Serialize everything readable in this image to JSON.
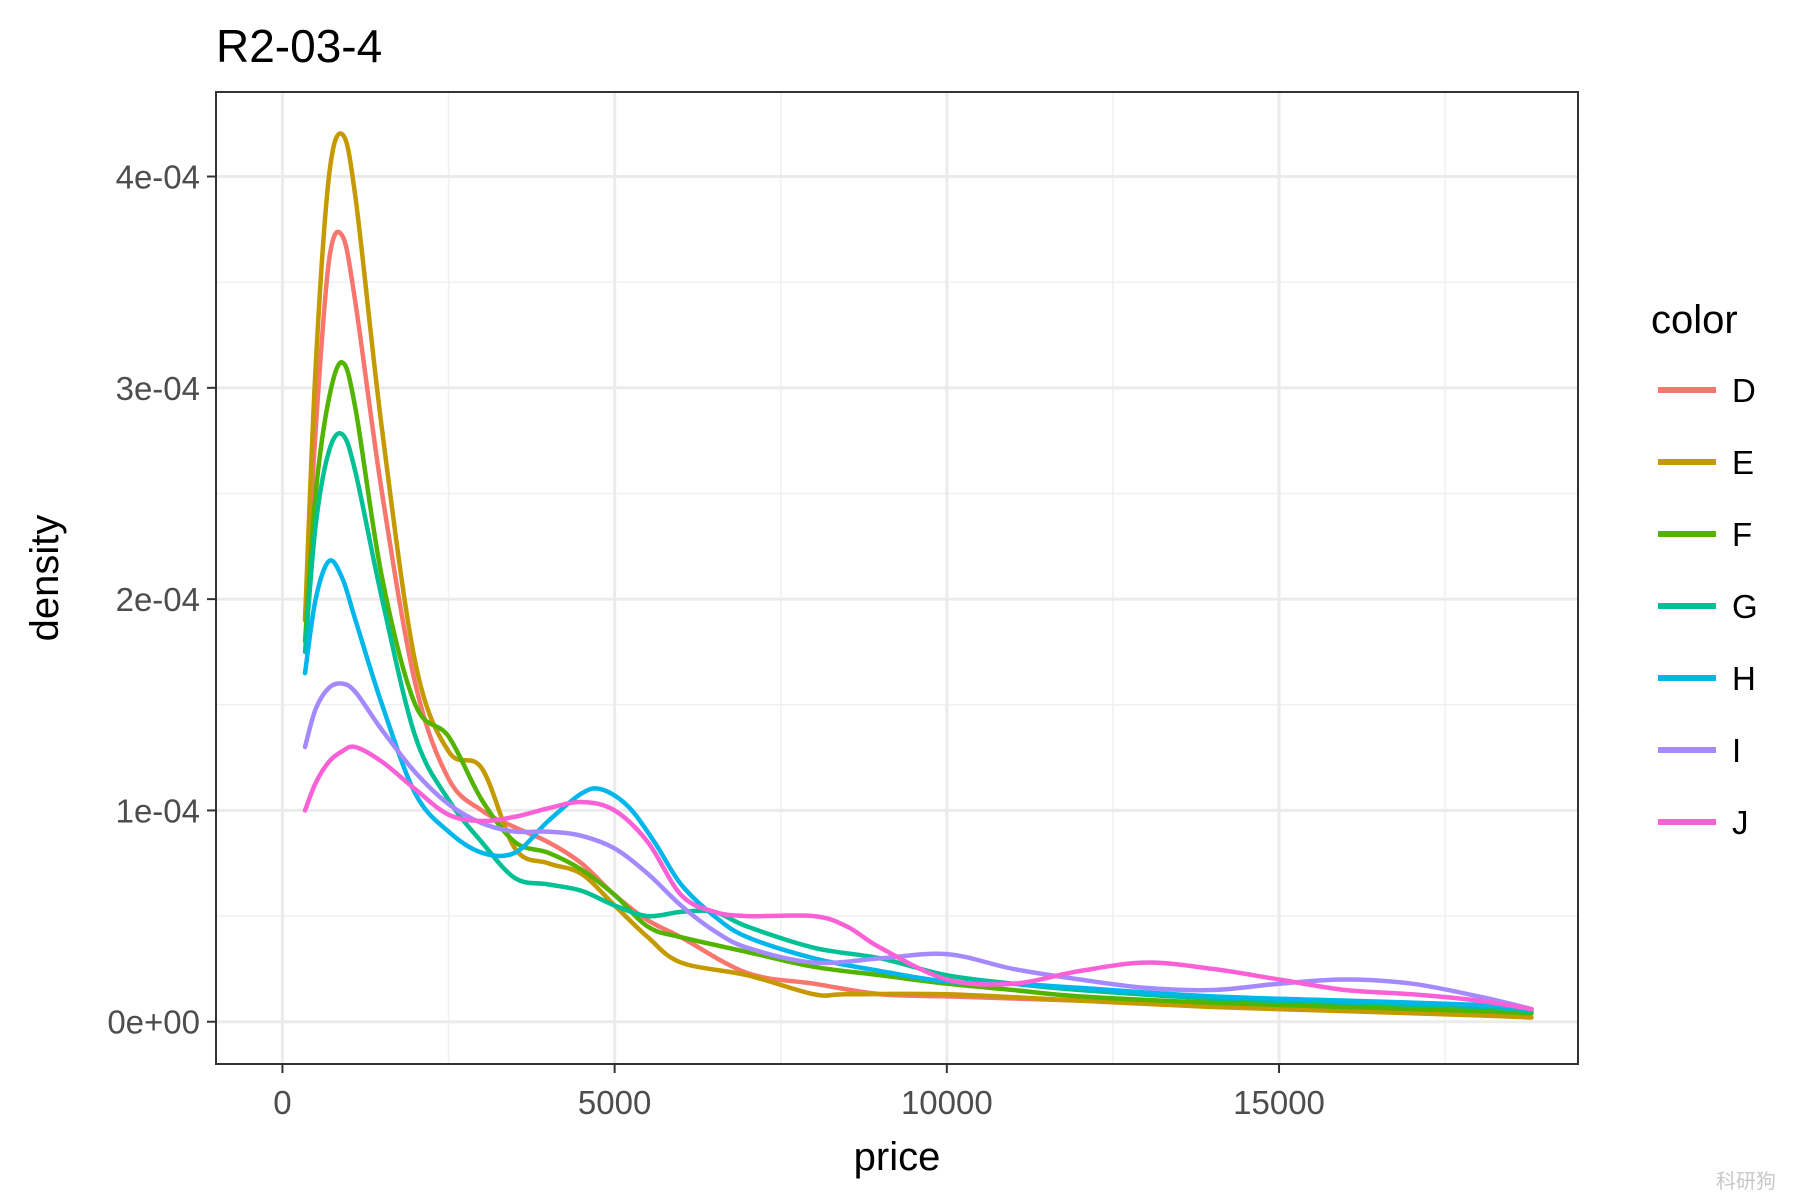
{
  "chart_data": {
    "type": "line",
    "title": "R2-03-4",
    "xlabel": "price",
    "ylabel": "density",
    "xlim": [
      -1000,
      19500
    ],
    "ylim": [
      -2e-05,
      0.00044
    ],
    "x_ticks": [
      0,
      5000,
      10000,
      15000
    ],
    "x_tick_labels": [
      "0",
      "5000",
      "10000",
      "15000"
    ],
    "y_ticks": [
      0,
      0.0001,
      0.0002,
      0.0003,
      0.0004
    ],
    "y_tick_labels": [
      "0e+00",
      "1e-04",
      "2e-04",
      "3e-04",
      "4e-04"
    ],
    "grid": true,
    "legend": {
      "title": "color",
      "position": "right"
    },
    "watermark": "科研狗",
    "series": [
      {
        "name": "D",
        "color": "#F8766D",
        "x": [
          340,
          500,
          700,
          900,
          1100,
          1500,
          2000,
          2500,
          3000,
          3500,
          4000,
          4500,
          5000,
          5500,
          6000,
          7000,
          8000,
          9000,
          10000,
          11000,
          12000,
          14000,
          16000,
          18000,
          18800
        ],
        "y": [
          0.00019,
          0.00028,
          0.00036,
          0.000372,
          0.00034,
          0.00025,
          0.00016,
          0.000115,
          0.0001,
          9.2e-05,
          8.5e-05,
          7.5e-05,
          6e-05,
          4.8e-05,
          4e-05,
          2.3e-05,
          1.8e-05,
          1.3e-05,
          1.2e-05,
          1.1e-05,
          1e-05,
          8e-06,
          7e-06,
          5e-06,
          4e-06
        ]
      },
      {
        "name": "E",
        "color": "#C49A00",
        "x": [
          340,
          500,
          700,
          900,
          1100,
          1500,
          2000,
          2500,
          3000,
          3500,
          4000,
          4500,
          5000,
          5500,
          6000,
          7000,
          8000,
          8500,
          10000,
          12000,
          14000,
          16000,
          18000,
          18800
        ],
        "y": [
          0.00019,
          0.00031,
          0.0004,
          0.00042,
          0.00039,
          0.00028,
          0.00017,
          0.000128,
          0.00012,
          8.2e-05,
          7.5e-05,
          7e-05,
          5.5e-05,
          4e-05,
          2.8e-05,
          2.2e-05,
          1.3e-05,
          1.3e-05,
          1.3e-05,
          1e-05,
          7e-06,
          5e-06,
          3e-06,
          2e-06
        ]
      },
      {
        "name": "F",
        "color": "#53B400",
        "x": [
          340,
          500,
          700,
          900,
          1100,
          1500,
          2000,
          2500,
          3000,
          3500,
          4000,
          4500,
          5000,
          5500,
          6000,
          7000,
          8000,
          9000,
          10000,
          11000,
          12000,
          14000,
          16000,
          18000,
          18800
        ],
        "y": [
          0.00018,
          0.00025,
          0.000295,
          0.000312,
          0.00029,
          0.00021,
          0.00015,
          0.000135,
          0.000105,
          8.5e-05,
          8e-05,
          7.2e-05,
          6e-05,
          4.5e-05,
          4e-05,
          3.3e-05,
          2.6e-05,
          2.2e-05,
          1.8e-05,
          1.5e-05,
          1.2e-05,
          9e-06,
          7e-06,
          5e-06,
          4e-06
        ]
      },
      {
        "name": "G",
        "color": "#00C094",
        "x": [
          340,
          500,
          700,
          900,
          1100,
          1500,
          2000,
          2500,
          3000,
          3500,
          4000,
          4500,
          5000,
          5500,
          6000,
          6500,
          7000,
          8000,
          9000,
          10000,
          11000,
          12000,
          14000,
          16000,
          18000,
          18800
        ],
        "y": [
          0.000175,
          0.000235,
          0.00027,
          0.000278,
          0.00026,
          0.0002,
          0.000135,
          0.000105,
          8.5e-05,
          6.8e-05,
          6.5e-05,
          6.2e-05,
          5.5e-05,
          5e-05,
          5.2e-05,
          5.2e-05,
          4.5e-05,
          3.5e-05,
          3e-05,
          2.2e-05,
          1.8e-05,
          1.5e-05,
          1.1e-05,
          9e-06,
          7e-06,
          5e-06
        ]
      },
      {
        "name": "H",
        "color": "#00B6EB",
        "x": [
          340,
          500,
          700,
          900,
          1100,
          1500,
          2000,
          2500,
          3000,
          3500,
          4000,
          4500,
          4800,
          5200,
          5600,
          6000,
          6500,
          7000,
          8000,
          9000,
          10000,
          11000,
          12000,
          14000,
          16000,
          18000,
          18800
        ],
        "y": [
          0.000165,
          0.0002,
          0.000218,
          0.00021,
          0.00019,
          0.00015,
          0.000108,
          9e-05,
          8e-05,
          8e-05,
          9.5e-05,
          0.000108,
          0.00011,
          0.000102,
          8.5e-05,
          6.5e-05,
          5e-05,
          4e-05,
          3e-05,
          2.4e-05,
          1.9e-05,
          1.8e-05,
          1.6e-05,
          1.2e-05,
          1e-05,
          8e-06,
          6e-06
        ]
      },
      {
        "name": "I",
        "color": "#A58AFF",
        "x": [
          340,
          500,
          700,
          900,
          1100,
          1500,
          2000,
          2500,
          3000,
          3500,
          4000,
          4500,
          5000,
          5500,
          6000,
          6500,
          7000,
          8000,
          9000,
          10000,
          11000,
          12000,
          13000,
          14000,
          15000,
          16000,
          17000,
          18000,
          18800
        ],
        "y": [
          0.00013,
          0.000148,
          0.000158,
          0.00016,
          0.000156,
          0.000138,
          0.000118,
          0.000103,
          9.4e-05,
          9e-05,
          9e-05,
          8.8e-05,
          8.2e-05,
          7e-05,
          5.5e-05,
          4.3e-05,
          3.5e-05,
          2.8e-05,
          3e-05,
          3.2e-05,
          2.5e-05,
          2e-05,
          1.6e-05,
          1.5e-05,
          1.8e-05,
          2e-05,
          1.8e-05,
          1.2e-05,
          6e-06
        ]
      },
      {
        "name": "J",
        "color": "#FB61D7",
        "x": [
          340,
          500,
          700,
          900,
          1100,
          1500,
          2000,
          2500,
          3000,
          3500,
          4000,
          4500,
          5000,
          5500,
          6000,
          6500,
          7000,
          8000,
          8500,
          9000,
          10000,
          11000,
          12000,
          13000,
          14000,
          15000,
          16000,
          17000,
          18000,
          18800
        ],
        "y": [
          0.0001,
          0.000113,
          0.000123,
          0.000128,
          0.00013,
          0.000123,
          0.00011,
          9.8e-05,
          9.5e-05,
          9.7e-05,
          0.000101,
          0.000104,
          0.0001,
          8.5e-05,
          6e-05,
          5.2e-05,
          5e-05,
          5e-05,
          4.5e-05,
          3.5e-05,
          2e-05,
          1.8e-05,
          2.4e-05,
          2.8e-05,
          2.5e-05,
          2e-05,
          1.5e-05,
          1.3e-05,
          1e-05,
          6e-06
        ]
      }
    ]
  }
}
